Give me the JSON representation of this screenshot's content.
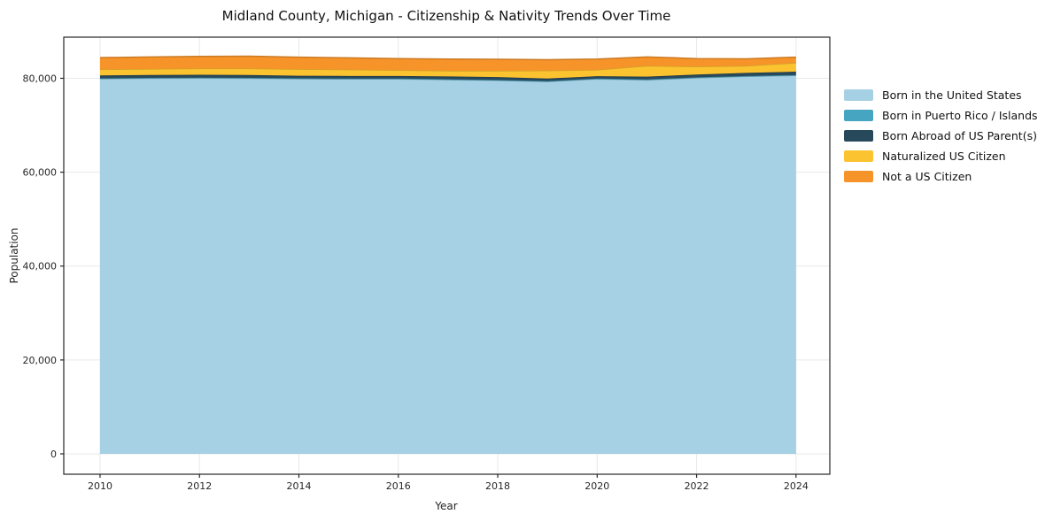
{
  "figure": {
    "background": "#ffffff"
  },
  "chart_data": {
    "type": "area",
    "stacked": true,
    "title": "Midland County, Michigan - Citizenship & Nativity Trends Over Time",
    "xlabel": "Year",
    "ylabel": "Population",
    "x": [
      2010,
      2011,
      2012,
      2013,
      2014,
      2015,
      2016,
      2017,
      2018,
      2019,
      2020,
      2021,
      2022,
      2023,
      2024
    ],
    "series": [
      {
        "name": "Born in the United States",
        "color": "#a6d1e4",
        "values": [
          79900,
          80000,
          80050,
          80000,
          79900,
          79850,
          79850,
          79700,
          79550,
          79300,
          79850,
          79650,
          80100,
          80400,
          80600
        ]
      },
      {
        "name": "Born in Puerto Rico / Islands",
        "color": "#46a6c2",
        "values": [
          100,
          100,
          100,
          100,
          100,
          100,
          100,
          100,
          100,
          100,
          100,
          100,
          100,
          100,
          100
        ]
      },
      {
        "name": "Born Abroad of US Parent(s)",
        "color": "#28495c",
        "values": [
          600,
          600,
          600,
          600,
          550,
          550,
          550,
          600,
          600,
          550,
          500,
          600,
          600,
          650,
          700
        ]
      },
      {
        "name": "Naturalized US Citizen",
        "color": "#fcc331",
        "values": [
          1300,
          1300,
          1350,
          1400,
          1400,
          1350,
          1250,
          1200,
          1350,
          1700,
          1350,
          2300,
          1700,
          1500,
          1900
        ]
      },
      {
        "name": "Not a US Citizen",
        "color": "#f79429",
        "values": [
          2500,
          2550,
          2550,
          2600,
          2550,
          2500,
          2450,
          2500,
          2450,
          2300,
          2300,
          1900,
          1700,
          1500,
          1200
        ]
      }
    ],
    "x_ticks": [
      "2010",
      "2012",
      "2014",
      "2016",
      "2018",
      "2020",
      "2022",
      "2024"
    ],
    "x_tick_values": [
      2010,
      2012,
      2014,
      2016,
      2018,
      2020,
      2022,
      2024
    ],
    "y_ticks": [
      "0",
      "20,000",
      "40,000",
      "60,000",
      "80,000"
    ],
    "y_tick_values": [
      0,
      20000,
      40000,
      60000,
      80000
    ],
    "xlim": [
      2009.27,
      2024.68
    ],
    "ylim": [
      -4334,
      88760
    ],
    "grid": true,
    "grid_color": "#e8e8e8",
    "axis_color": "#262626",
    "legend_position": "right-outside"
  }
}
